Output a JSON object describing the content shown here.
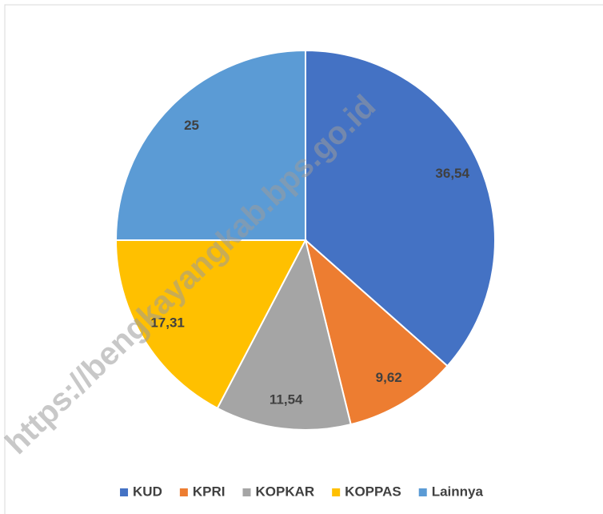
{
  "chart_data": {
    "type": "pie",
    "categories": [
      "KUD",
      "KPRI",
      "KOPKAR",
      "KOPPAS",
      "Lainnya"
    ],
    "values": [
      36.54,
      9.62,
      11.54,
      17.31,
      25
    ],
    "value_labels": [
      "36,54",
      "9,62",
      "11,54",
      "17,31",
      "25"
    ],
    "colors": [
      "#4472c4",
      "#ed7d31",
      "#a5a5a5",
      "#ffc000",
      "#5b9bd5"
    ],
    "legend": "bottom",
    "watermark": "https://bengkayangkab.bps.go.id"
  }
}
